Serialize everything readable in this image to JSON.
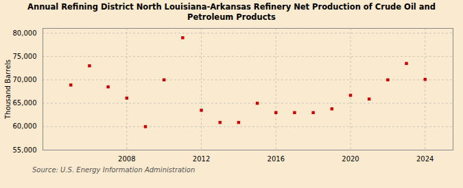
{
  "chart_data": {
    "type": "scatter",
    "title": "Annual Refining District North Louisiana-Arkansas Refinery Net Production of Crude Oil and\nPetroleum Products",
    "ylabel": "Thousand Barrels",
    "source": "Source: U.S. Energy Information Administration",
    "x": [
      2005,
      2006,
      2007,
      2008,
      2009,
      2010,
      2011,
      2012,
      2013,
      2014,
      2015,
      2016,
      2017,
      2018,
      2019,
      2020,
      2021,
      2022,
      2023,
      2024
    ],
    "values": [
      68900,
      73000,
      68500,
      66100,
      60000,
      70000,
      79000,
      63500,
      60900,
      60900,
      65000,
      63000,
      63000,
      63000,
      63800,
      66700,
      65900,
      70000,
      73500,
      70100
    ],
    "color": "#cc0000",
    "marker": "square",
    "xlim": [
      2003.5,
      2025.5
    ],
    "xticks": [
      2008,
      2012,
      2016,
      2020,
      2024
    ],
    "ylim": [
      55000,
      81000
    ],
    "yticks": [
      {
        "value": 55000,
        "label": "55,000"
      },
      {
        "value": 60000,
        "label": "60,000"
      },
      {
        "value": 65000,
        "label": "65,000"
      },
      {
        "value": 70000,
        "label": "70,000"
      },
      {
        "value": 75000,
        "label": "75,000"
      },
      {
        "value": 80000,
        "label": "80,000"
      }
    ],
    "grid": true
  }
}
